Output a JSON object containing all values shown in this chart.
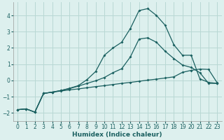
{
  "xlabel": "Humidex (Indice chaleur)",
  "bg_color": "#ddf0ee",
  "grid_color": "#b8d8d4",
  "line_color": "#1a6060",
  "xlim": [
    -0.5,
    23.5
  ],
  "ylim": [
    -2.5,
    4.8
  ],
  "yticks": [
    -2,
    -1,
    0,
    1,
    2,
    3,
    4
  ],
  "xticks": [
    0,
    1,
    2,
    3,
    4,
    5,
    6,
    7,
    8,
    9,
    10,
    11,
    12,
    13,
    14,
    15,
    16,
    17,
    18,
    19,
    20,
    21,
    22,
    23
  ],
  "series1_x": [
    0,
    1,
    2,
    3,
    4,
    5,
    6,
    7,
    8,
    9,
    10,
    11,
    12,
    13,
    14,
    15,
    16,
    17,
    18,
    19,
    20,
    21,
    22,
    23
  ],
  "series1_y": [
    -1.8,
    -1.75,
    -1.95,
    -0.8,
    -0.72,
    -0.65,
    -0.58,
    -0.52,
    -0.45,
    -0.38,
    -0.32,
    -0.25,
    -0.18,
    -0.12,
    -0.05,
    0.02,
    0.08,
    0.15,
    0.22,
    0.5,
    0.62,
    0.7,
    0.68,
    -0.15
  ],
  "series2_x": [
    0,
    1,
    2,
    3,
    4,
    5,
    6,
    7,
    8,
    9,
    10,
    11,
    12,
    13,
    14,
    15,
    16,
    17,
    18,
    19,
    20,
    21,
    22,
    23
  ],
  "series2_y": [
    -1.8,
    -1.75,
    -1.95,
    -0.8,
    -0.72,
    -0.62,
    -0.48,
    -0.32,
    0.05,
    0.55,
    1.55,
    2.0,
    2.35,
    3.2,
    4.3,
    4.42,
    4.0,
    3.4,
    2.2,
    1.55,
    1.55,
    0.1,
    -0.12,
    -0.18
  ],
  "series3_x": [
    0,
    1,
    2,
    3,
    4,
    5,
    6,
    7,
    8,
    9,
    10,
    11,
    12,
    13,
    14,
    15,
    16,
    17,
    18,
    19,
    20,
    21,
    22,
    23
  ],
  "series3_y": [
    -1.8,
    -1.75,
    -1.95,
    -0.8,
    -0.72,
    -0.62,
    -0.5,
    -0.35,
    -0.18,
    -0.02,
    0.18,
    0.48,
    0.72,
    1.45,
    2.55,
    2.62,
    2.35,
    1.8,
    1.35,
    0.95,
    0.8,
    0.48,
    -0.18,
    -0.18
  ],
  "xlabel_fontsize": 6.5,
  "tick_fontsize": 5.5
}
